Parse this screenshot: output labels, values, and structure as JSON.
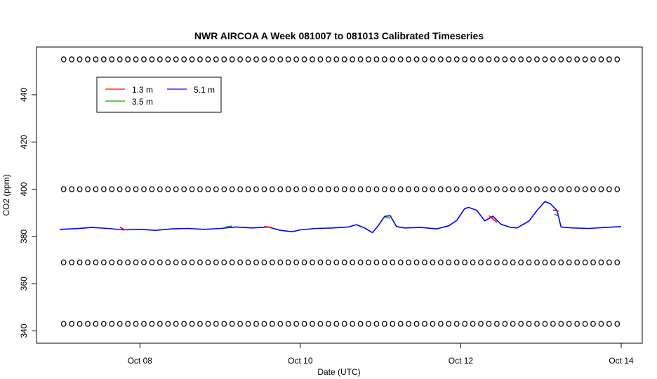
{
  "chart_data": {
    "type": "line",
    "title": "NWR AIRCOA A  Week 081007 to 081013  Calibrated Timeseries",
    "xlabel": "Date (UTC)",
    "ylabel": "CO2 (ppm)",
    "x_unit": "days (Oct 2008, UTC)",
    "xlim": [
      7.0,
      14.0
    ],
    "ylim": [
      336,
      458
    ],
    "x_ticks": [
      {
        "value": 8,
        "label": "Oct 08"
      },
      {
        "value": 10,
        "label": "Oct 10"
      },
      {
        "value": 12,
        "label": "Oct 12"
      },
      {
        "value": 14,
        "label": "Oct 14"
      }
    ],
    "y_ticks": [
      {
        "value": 340,
        "label": "340"
      },
      {
        "value": 360,
        "label": "360"
      },
      {
        "value": 380,
        "label": "380"
      },
      {
        "value": 400,
        "label": "400"
      },
      {
        "value": 420,
        "label": "420"
      },
      {
        "value": 440,
        "label": "440"
      }
    ],
    "legend": {
      "position": "top-left",
      "entries": [
        {
          "label": "1.3 m",
          "color": "#ff0000"
        },
        {
          "label": "3.5 m",
          "color": "#00aa00"
        },
        {
          "label": "5.1 m",
          "color": "#0000ff"
        }
      ]
    },
    "series": [
      {
        "name": "5.1 m",
        "color": "#0000ff",
        "points": [
          [
            7.0,
            383.0
          ],
          [
            7.2,
            383.3
          ],
          [
            7.4,
            383.8
          ],
          [
            7.6,
            383.4
          ],
          [
            7.8,
            382.8
          ],
          [
            8.0,
            383.0
          ],
          [
            8.2,
            382.6
          ],
          [
            8.4,
            383.2
          ],
          [
            8.6,
            383.4
          ],
          [
            8.8,
            383.0
          ],
          [
            9.0,
            383.4
          ],
          [
            9.2,
            384.0
          ],
          [
            9.4,
            383.6
          ],
          [
            9.6,
            384.0
          ],
          [
            9.75,
            382.6
          ],
          [
            9.9,
            382.0
          ],
          [
            10.0,
            382.8
          ],
          [
            10.2,
            383.4
          ],
          [
            10.4,
            383.6
          ],
          [
            10.6,
            384.0
          ],
          [
            10.7,
            385.0
          ],
          [
            10.8,
            383.6
          ],
          [
            10.9,
            381.6
          ],
          [
            10.97,
            384.5
          ],
          [
            11.05,
            388.5
          ],
          [
            11.12,
            388.8
          ],
          [
            11.2,
            384.2
          ],
          [
            11.3,
            383.6
          ],
          [
            11.5,
            383.8
          ],
          [
            11.7,
            383.2
          ],
          [
            11.85,
            384.5
          ],
          [
            11.95,
            386.8
          ],
          [
            12.05,
            391.8
          ],
          [
            12.1,
            392.3
          ],
          [
            12.2,
            391.0
          ],
          [
            12.3,
            386.6
          ],
          [
            12.4,
            388.6
          ],
          [
            12.5,
            385.2
          ],
          [
            12.6,
            384.0
          ],
          [
            12.7,
            383.6
          ],
          [
            12.85,
            386.5
          ],
          [
            12.95,
            391.0
          ],
          [
            13.05,
            394.8
          ],
          [
            13.12,
            393.8
          ],
          [
            13.2,
            391.0
          ],
          [
            13.25,
            384.0
          ],
          [
            13.4,
            383.6
          ],
          [
            13.6,
            383.4
          ],
          [
            13.8,
            383.8
          ],
          [
            14.0,
            384.2
          ]
        ]
      },
      {
        "name": "3.5 m",
        "color": "#00aa00",
        "points": [
          [
            9.05,
            383.8
          ],
          [
            9.15,
            384.4
          ],
          [
            11.04,
            388.0
          ],
          [
            11.12,
            387.8
          ],
          [
            13.17,
            389.4
          ],
          [
            13.22,
            388.6
          ]
        ]
      },
      {
        "name": "1.3 m",
        "color": "#ff0000",
        "points": [
          [
            7.75,
            384.0
          ],
          [
            7.8,
            383.0
          ],
          [
            9.55,
            384.2
          ],
          [
            9.65,
            383.8
          ],
          [
            12.35,
            388.8
          ],
          [
            12.45,
            386.0
          ],
          [
            13.15,
            391.2
          ],
          [
            13.22,
            390.6
          ]
        ]
      }
    ],
    "marker_rows": [
      {
        "y": 343.0,
        "marker": "o",
        "count": 70
      },
      {
        "y": 369.0,
        "marker": "o",
        "count": 70
      },
      {
        "y": 400.0,
        "marker": "o",
        "count": 70
      },
      {
        "y": 455.0,
        "marker": "o",
        "count": 70
      }
    ]
  }
}
